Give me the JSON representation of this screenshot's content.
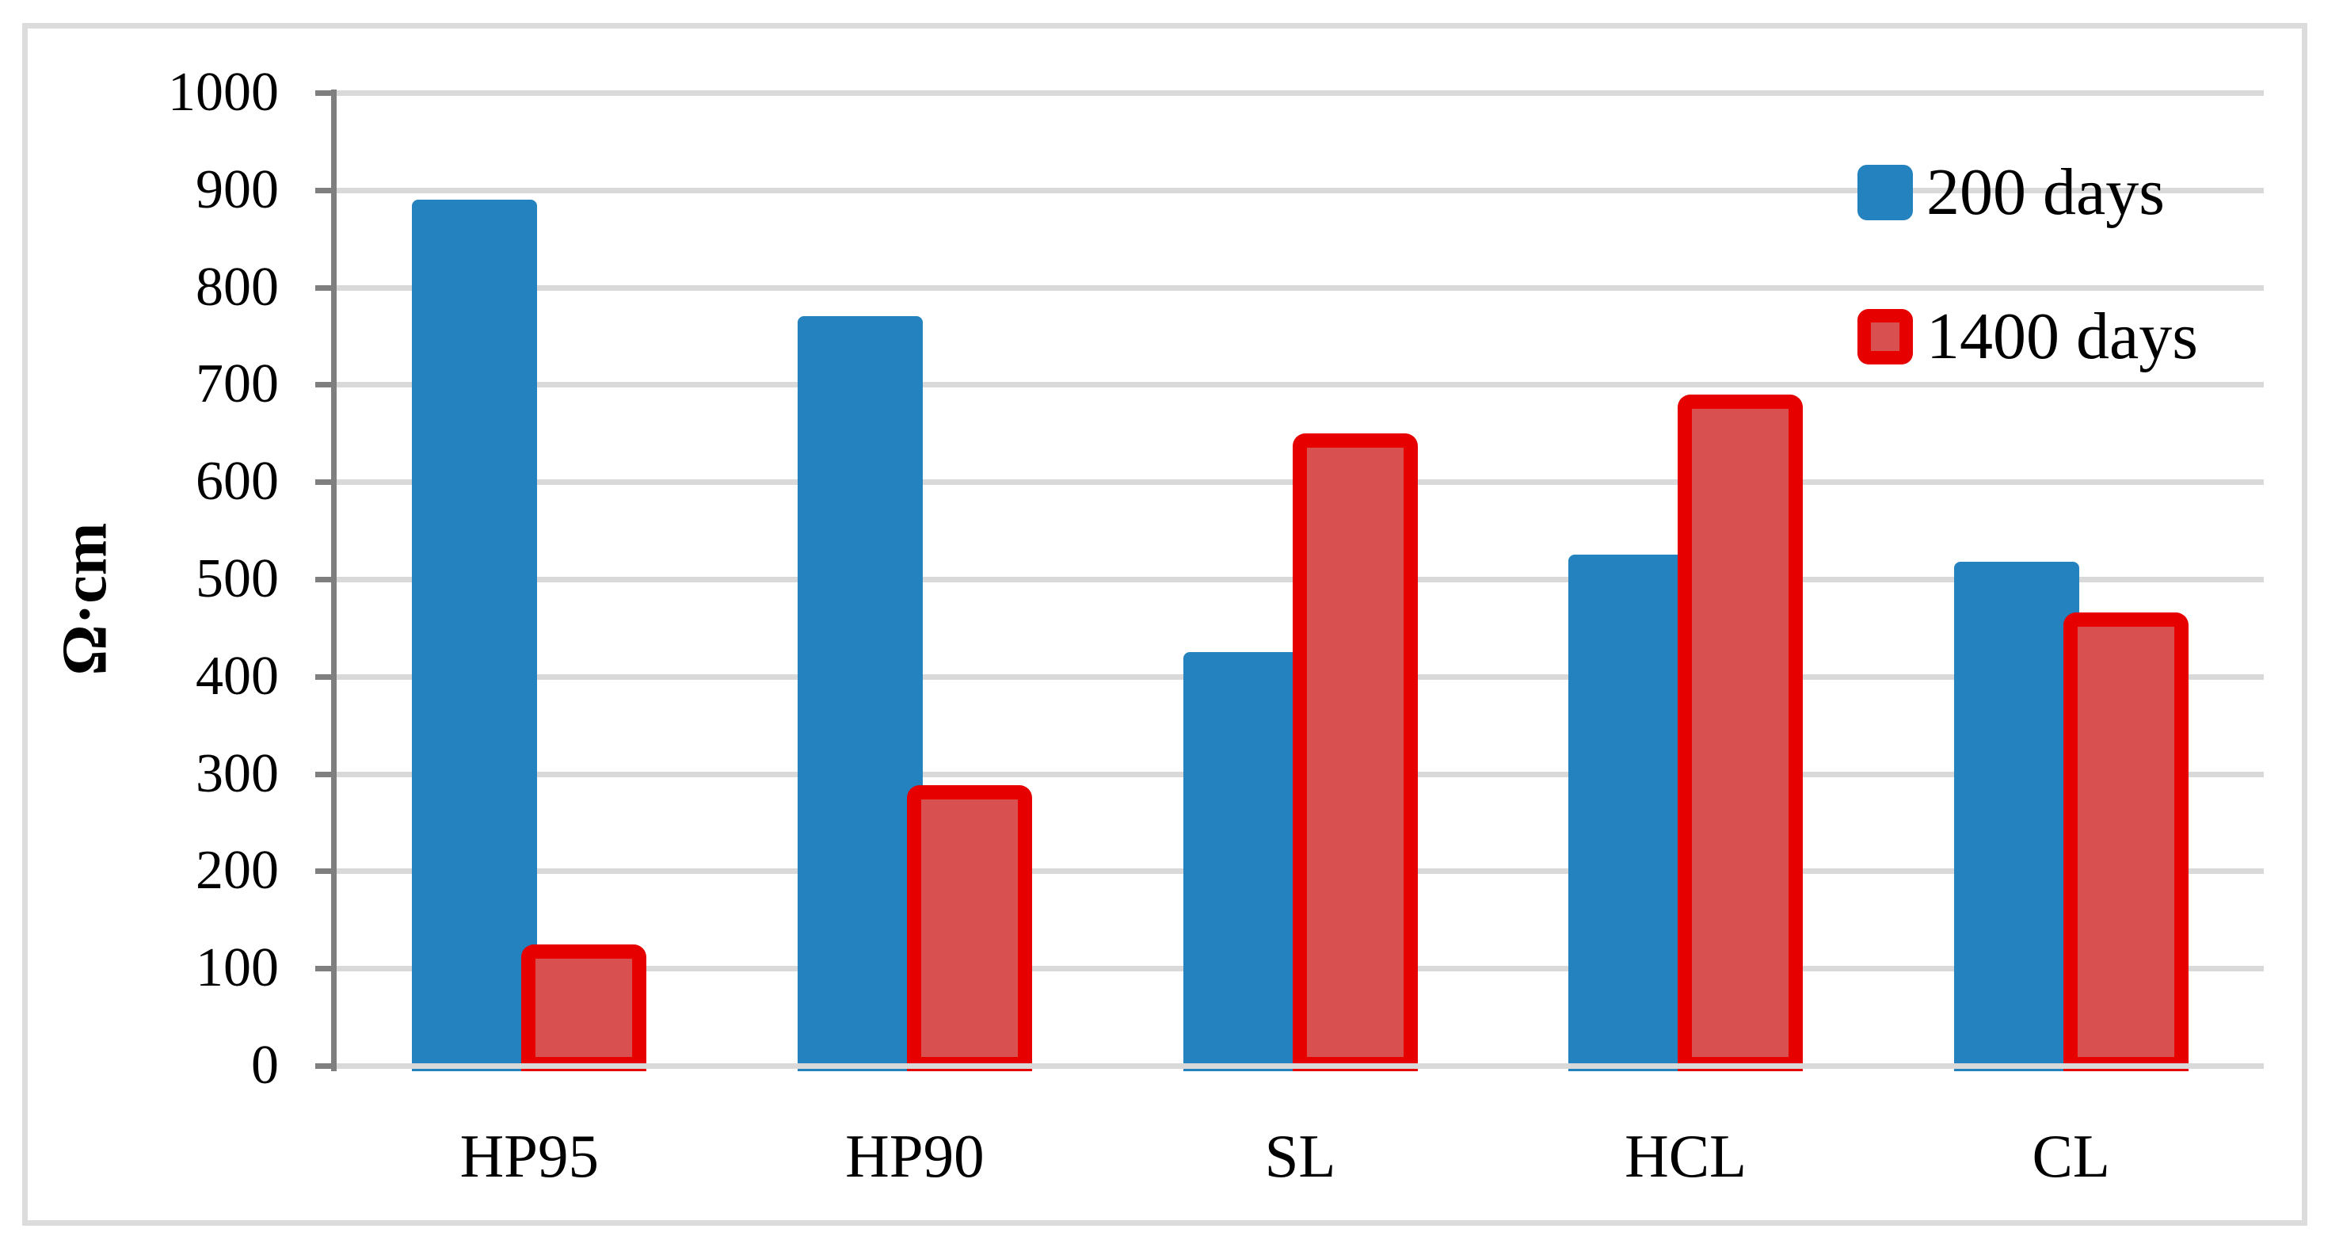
{
  "chart_data": {
    "type": "bar",
    "title": "",
    "xlabel": "",
    "ylabel": "Ω·cm",
    "categories": [
      "HP95",
      "HP90",
      "SL",
      "HCL",
      "CL"
    ],
    "series": [
      {
        "name": "200 days",
        "color": "#2482BE",
        "values": [
          890,
          770,
          425,
          525,
          518
        ]
      },
      {
        "name": "1400 days",
        "fill": "#D95050",
        "border_color": "#E60000",
        "values": [
          125,
          288,
          650,
          690,
          466
        ]
      }
    ],
    "ylim": [
      0,
      1000
    ],
    "ytick_step": 100,
    "yticks": [
      "0",
      "100",
      "200",
      "300",
      "400",
      "500",
      "600",
      "700",
      "800",
      "900",
      "1000"
    ],
    "grid": true,
    "gridline_color": "#D9D9D9",
    "axis_color": "#7F7F7F",
    "frame_color": "#DCDCDC",
    "legend_position": "top-right"
  }
}
